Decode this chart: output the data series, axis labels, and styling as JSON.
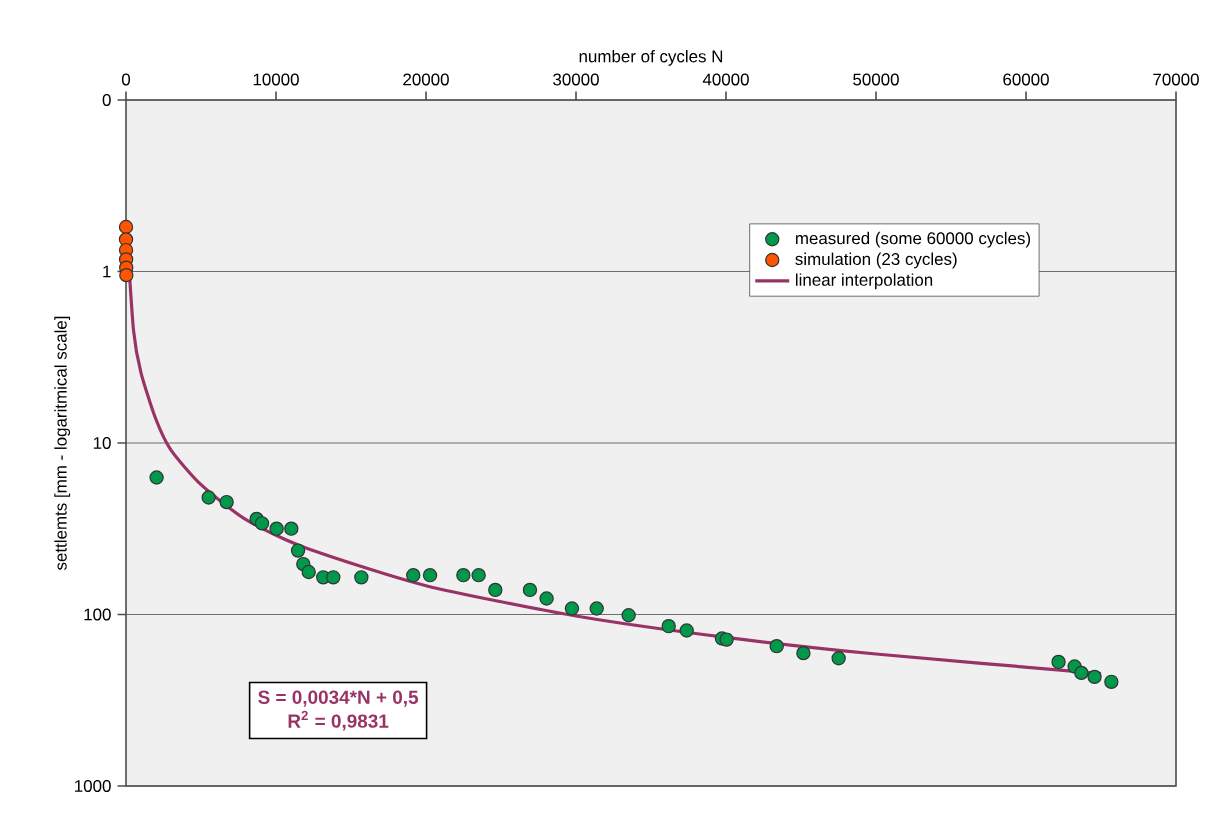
{
  "chart_data": {
    "type": "scatter",
    "xlabel": "number of cycles N",
    "ylabel": "settlemts [mm - logaritmical scale]",
    "xlim": [
      0,
      70000
    ],
    "xticks": [
      0,
      10000,
      20000,
      30000,
      40000,
      50000,
      60000,
      70000
    ],
    "ylim": [
      1000,
      0.1
    ],
    "log": "y",
    "yticks": [
      {
        "value": 0.1,
        "label": "0"
      },
      1,
      10,
      100,
      1000
    ],
    "grid": "y",
    "legend": "top right",
    "series": [
      {
        "name": "measured (some 60000 cycles)",
        "marker": "circle",
        "color": "#00994c",
        "x": [
          2040,
          5510,
          6710,
          8710,
          9070,
          10040,
          11020,
          11470,
          11820,
          12180,
          13150,
          13820,
          15690,
          19150,
          20270,
          22490,
          23510,
          24620,
          26930,
          28040,
          29730,
          31380,
          33510,
          36180,
          37380,
          39730,
          40040,
          43380,
          45160,
          47510,
          62170,
          63240,
          63690,
          64570,
          65690
        ],
        "values": [
          15.9,
          20.8,
          22.1,
          27.7,
          29.4,
          31.6,
          31.6,
          42.4,
          50.8,
          56.5,
          60.7,
          60.7,
          60.7,
          59,
          59,
          59,
          59,
          71.9,
          71.9,
          80.7,
          92.3,
          92.3,
          101,
          117,
          124,
          138,
          140,
          153,
          168,
          180,
          189,
          201,
          219,
          231,
          247
        ]
      },
      {
        "name": "simulation (23 cycles)",
        "marker": "circle",
        "color": "#ff5500",
        "x": [
          1,
          2,
          4,
          8,
          16,
          23
        ],
        "values": [
          0.55,
          0.65,
          0.75,
          0.85,
          0.95,
          1.05
        ]
      },
      {
        "name": "linear interpolation",
        "type": "line",
        "marker": "none",
        "color": "#993366",
        "x": [
          0,
          500,
          1000,
          2000,
          3000,
          5000,
          8000,
          12000,
          20000,
          30000,
          40000,
          50000,
          65000
        ],
        "values": [
          0.5,
          2.2,
          3.9,
          7.3,
          11,
          17.5,
          28,
          41,
          68,
          102,
          136,
          170,
          221
        ]
      }
    ],
    "annotations": [
      "S = 0,0034*N + 0,5",
      "R$^{2}$ = 0,9831"
    ]
  }
}
